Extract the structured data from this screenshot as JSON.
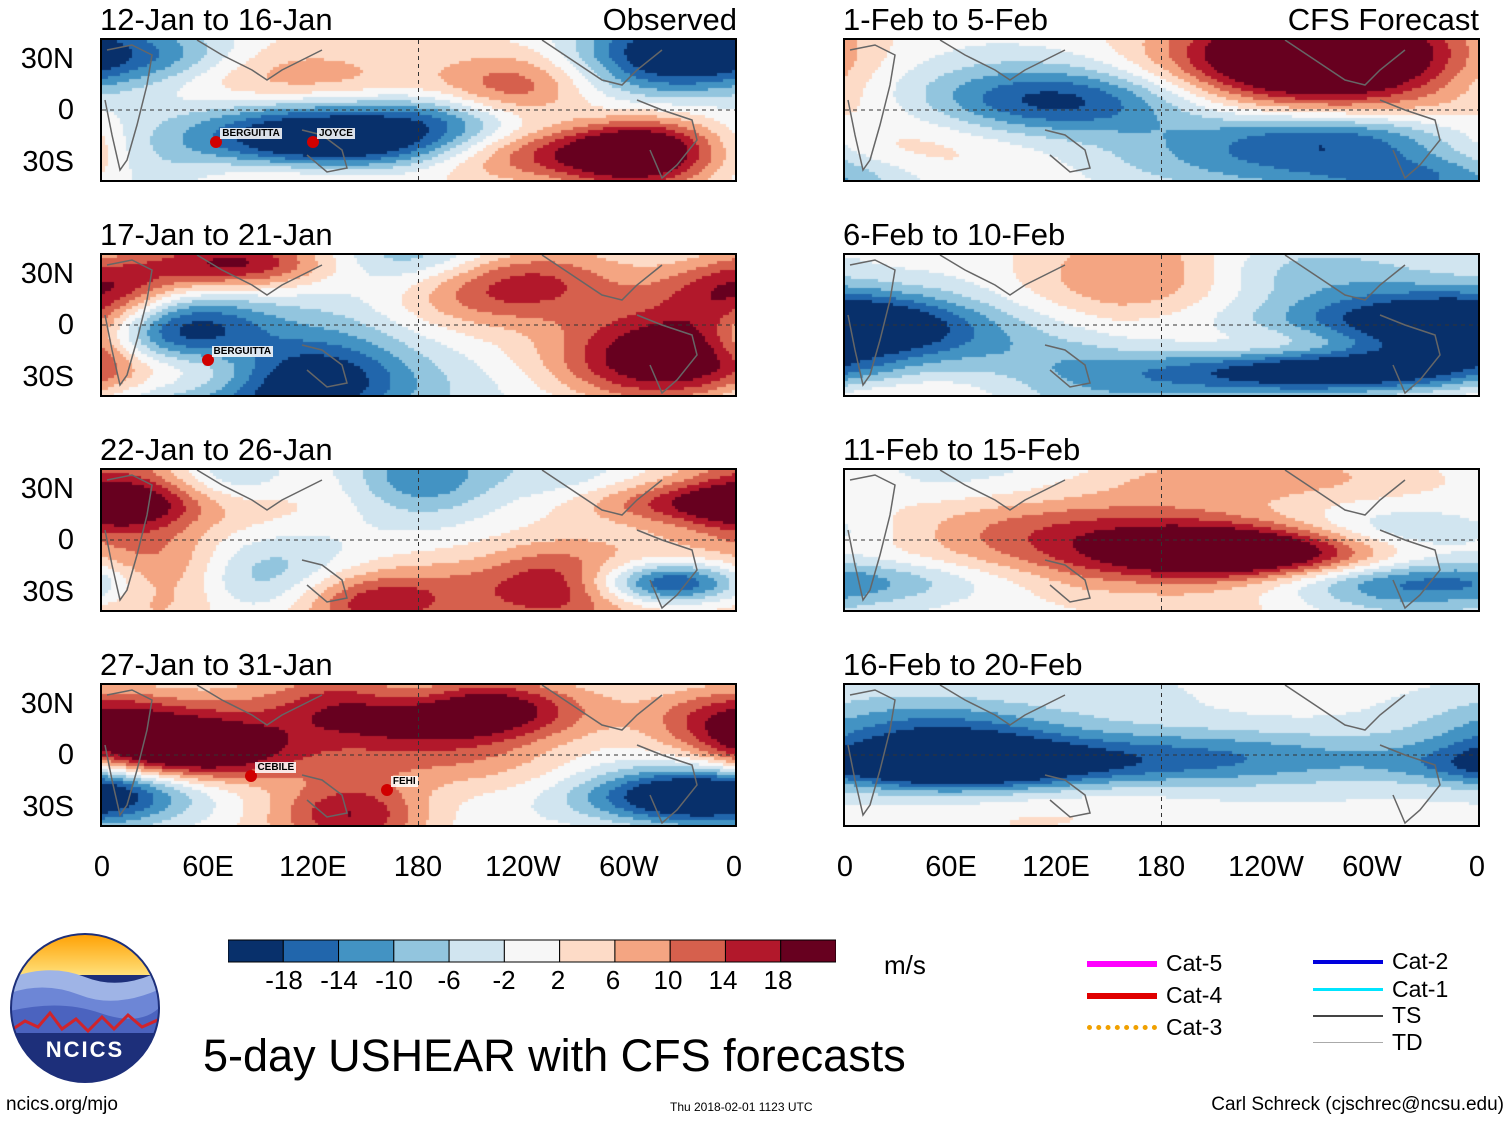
{
  "chart_data": {
    "type": "heatmap",
    "title": "5-day USHEAR with CFS forecasts",
    "units": "m/s",
    "variable": "USHEAR",
    "column_headers": {
      "observed": "Observed",
      "forecast": "CFS Forecast"
    },
    "lat_ticks": [
      "30N",
      "0",
      "30S"
    ],
    "lon_ticks": [
      "0",
      "60E",
      "120E",
      "180",
      "120W",
      "60W",
      "0"
    ],
    "colorbar": {
      "levels": [
        "-18",
        "-14",
        "-10",
        "-6",
        "-2",
        "2",
        "6",
        "10",
        "14",
        "18"
      ],
      "colors": [
        "#08306b",
        "#2166ac",
        "#4393c3",
        "#92c5de",
        "#d1e5f0",
        "#f7f7f7",
        "#fddbc7",
        "#f4a582",
        "#d6604d",
        "#b2182b",
        "#67001f"
      ]
    },
    "panels": [
      {
        "id": "obs1",
        "title": "12-Jan to 16-Jan",
        "header": "Observed",
        "kind": "observed",
        "storms": [
          {
            "name": "BERGUITTA",
            "lon": 65,
            "lat": -18
          },
          {
            "name": "JOYCE",
            "lon": 120,
            "lat": -18
          }
        ]
      },
      {
        "id": "obs2",
        "title": "17-Jan to 21-Jan",
        "kind": "observed",
        "storms": [
          {
            "name": "BERGUITTA",
            "lon": 60,
            "lat": -20
          }
        ]
      },
      {
        "id": "obs3",
        "title": "22-Jan to 26-Jan",
        "kind": "observed",
        "storms": []
      },
      {
        "id": "obs4",
        "title": "27-Jan to 31-Jan",
        "kind": "observed",
        "storms": [
          {
            "name": "CEBILE",
            "lon": 85,
            "lat": -12
          },
          {
            "name": "FEHI",
            "lon": 162,
            "lat": -20
          }
        ]
      },
      {
        "id": "fc1",
        "title": "1-Feb to 5-Feb",
        "header": "CFS Forecast",
        "kind": "forecast",
        "storms": []
      },
      {
        "id": "fc2",
        "title": "6-Feb to 10-Feb",
        "kind": "forecast",
        "storms": []
      },
      {
        "id": "fc3",
        "title": "11-Feb to 15-Feb",
        "kind": "forecast",
        "storms": []
      },
      {
        "id": "fc4",
        "title": "16-Feb to 20-Feb",
        "kind": "forecast",
        "storms": []
      }
    ],
    "legend": [
      {
        "label": "Cat-5",
        "color": "#ff00ff"
      },
      {
        "label": "Cat-4",
        "color": "#e00000"
      },
      {
        "label": "Cat-3",
        "color": "#f0a000"
      },
      {
        "label": "Cat-2",
        "color": "#0000dd"
      },
      {
        "label": "Cat-1",
        "color": "#00e5ff"
      },
      {
        "label": "TS",
        "color": "#444444"
      },
      {
        "label": "TD",
        "color": "#aaaaaa"
      }
    ]
  },
  "branding": {
    "logo_text": "NCICS",
    "url": "ncics.org/mjo",
    "timestamp": "Thu 2018-02-01 1123 UTC",
    "author": "Carl Schreck (cjschrec@ncsu.edu)"
  }
}
